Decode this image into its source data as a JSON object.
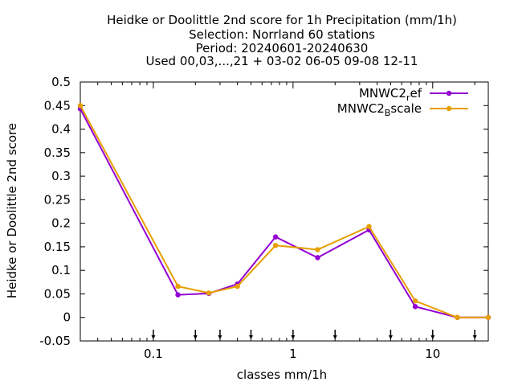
{
  "chart_data": {
    "type": "line",
    "title_lines": [
      "Heidke or Doolittle 2nd score  for 1h Precipitation (mm/1h)",
      "Selection: Norrland     60 stations",
      "Period: 20240601-20240630",
      "Used 00,03,...,21 + 03-02 06-05 09-08 12-11"
    ],
    "xlabel": "classes mm/1h",
    "ylabel": "Heidke or Doolittle 2nd score",
    "x_scale": "log",
    "xlim": [
      0.03,
      25
    ],
    "ylim": [
      -0.05,
      0.5
    ],
    "x_ticks": [
      0.1,
      1,
      10
    ],
    "x_tick_labels": [
      "0.1",
      "1",
      "10"
    ],
    "y_ticks": [
      -0.05,
      0,
      0.05,
      0.1,
      0.15,
      0.2,
      0.25,
      0.3,
      0.35,
      0.4,
      0.45,
      0.5
    ],
    "y_tick_labels": [
      "-0.05",
      "0",
      "0.05",
      "0.1",
      "0.15",
      "0.2",
      "0.25",
      "0.3",
      "0.35",
      "0.4",
      "0.45",
      "0.5"
    ],
    "threshold_markers": [
      0.1,
      0.2,
      0.3,
      0.5,
      1,
      2,
      5,
      10,
      20
    ],
    "grid": false,
    "legend_position": "top-right",
    "series": [
      {
        "legend_main": "MNWC2",
        "legend_sub": "r",
        "legend_tail": "ef",
        "color": "#9400d3",
        "x": [
          0.03,
          0.15,
          0.25,
          0.4,
          0.75,
          1.5,
          3.5,
          7.5,
          15,
          25
        ],
        "values": [
          0.443,
          0.048,
          0.051,
          0.071,
          0.171,
          0.127,
          0.186,
          0.023,
          0.0,
          0.0
        ]
      },
      {
        "legend_main": "MNWC2",
        "legend_sub": "B",
        "legend_tail": "scale",
        "color": "#e69f00",
        "x": [
          0.03,
          0.15,
          0.25,
          0.4,
          0.75,
          1.5,
          3.5,
          7.5,
          15,
          25
        ],
        "values": [
          0.45,
          0.066,
          0.052,
          0.066,
          0.153,
          0.144,
          0.193,
          0.035,
          0.0,
          0.0
        ]
      }
    ]
  }
}
